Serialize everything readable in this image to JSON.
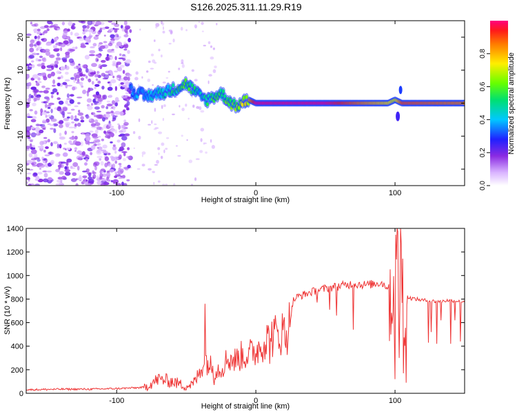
{
  "title": "S126.2025.311.11.29.R19",
  "chart_data": [
    {
      "type": "heatmap",
      "name": "spectrogram",
      "xlabel": "Height of straight line (km)",
      "ylabel": "Frequency (Hz)",
      "xlim": [
        -165,
        150
      ],
      "ylim": [
        -25,
        25
      ],
      "xticks": [
        -100,
        0,
        100
      ],
      "yticks": [
        -20,
        -10,
        0,
        10,
        20
      ],
      "colorbar": {
        "label": "Normalized spectral amplitude",
        "range": [
          0,
          1
        ],
        "ticks": [
          0.0,
          0.2,
          0.4,
          0.6,
          0.8
        ]
      },
      "ridge": {
        "description_points_height_km": [
          -90,
          -80,
          -70,
          -60,
          -50,
          -45,
          -40,
          -35,
          -30,
          -25,
          -20,
          -15,
          -10,
          -5,
          0,
          50,
          95,
          100,
          105,
          150
        ],
        "frequency_hz": [
          4,
          2,
          3,
          4,
          6,
          4,
          2,
          1,
          2,
          3,
          1,
          -1,
          0,
          1,
          0,
          0,
          0,
          1,
          0,
          0
        ],
        "amplitude": [
          0.35,
          0.4,
          0.45,
          0.5,
          0.55,
          0.5,
          0.45,
          0.5,
          0.55,
          0.5,
          0.6,
          0.6,
          0.7,
          0.8,
          1.0,
          1.0,
          0.75,
          0.7,
          0.9,
          0.85
        ]
      }
    },
    {
      "type": "line",
      "name": "snr",
      "xlabel": "Height of straight line (km)",
      "ylabel": "SNR (10 * v/v)",
      "xlim": [
        -165,
        150
      ],
      "ylim": [
        0,
        1400
      ],
      "xticks": [
        -100,
        0,
        100
      ],
      "yticks": [
        0,
        200,
        400,
        600,
        800,
        1000,
        1200,
        1400
      ],
      "color": "#ee3333",
      "series": {
        "name": "SNR",
        "x": [
          -165,
          -140,
          -120,
          -100,
          -80,
          -70,
          -60,
          -50,
          -45,
          -40,
          -37,
          -34,
          -30,
          -25,
          -20,
          -15,
          -10,
          -5,
          0,
          5,
          10,
          15,
          20,
          23,
          25,
          27,
          30,
          40,
          50,
          60,
          70,
          80,
          90,
          95,
          98,
          100,
          102,
          105,
          108,
          110,
          120,
          130,
          140,
          150
        ],
        "y": [
          30,
          35,
          35,
          40,
          50,
          120,
          100,
          60,
          80,
          180,
          300,
          250,
          200,
          210,
          300,
          280,
          320,
          330,
          360,
          430,
          470,
          500,
          520,
          530,
          650,
          790,
          820,
          860,
          890,
          910,
          930,
          920,
          940,
          900,
          850,
          960,
          1100,
          900,
          830,
          810,
          790,
          780,
          790,
          780
        ]
      },
      "spikes": {
        "x": [
          -36.5,
          -30,
          10,
          21,
          44,
          53,
          58,
          70,
          98,
          100,
          101.5,
          103,
          104,
          106,
          108,
          124,
          126,
          130,
          133,
          140,
          143,
          147
        ],
        "y": [
          760,
          70,
          250,
          420,
          770,
          710,
          660,
          540,
          590,
          120,
          1400,
          300,
          1400,
          170,
          90,
          430,
          520,
          420,
          620,
          420,
          620,
          440
        ]
      }
    }
  ]
}
